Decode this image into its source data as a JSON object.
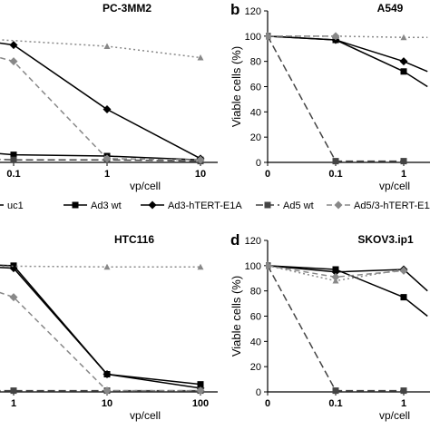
{
  "legend": [
    {
      "label": "uc1",
      "color": "#000000",
      "dash": "",
      "marker": "none"
    },
    {
      "label": "Ad3 wt",
      "color": "#000000",
      "dash": "",
      "marker": "square"
    },
    {
      "label": "Ad3-hTERT-E1A",
      "color": "#000000",
      "dash": "",
      "marker": "diamond"
    },
    {
      "label": "Ad5 wt",
      "color": "#444444",
      "dash": "8,4",
      "marker": "square"
    },
    {
      "label": "Ad5/3-hTERT-E1A",
      "color": "#888888",
      "dash": "6,4",
      "marker": "diamond"
    }
  ],
  "chart_data": [
    {
      "type": "line",
      "title": "PC-3MM2",
      "panel_letter": "",
      "xlabel": "vp/cell",
      "ylabel": "",
      "x_ticks": [
        "0.1",
        "1",
        "10"
      ],
      "ylim": [
        0,
        120
      ],
      "series": [
        {
          "name": "Ad3 wt",
          "color": "#000000",
          "dash": "",
          "marker": "square",
          "points": [
            [
              -0.8,
              11
            ],
            [
              0,
              6
            ],
            [
              1,
              5
            ],
            [
              2,
              2
            ]
          ]
        },
        {
          "name": "Ad3-hTERT-E1A",
          "color": "#000000",
          "dash": "",
          "marker": "diamond",
          "points": [
            [
              -0.8,
              101
            ],
            [
              0,
              93
            ],
            [
              1,
              42
            ],
            [
              2,
              3
            ]
          ]
        },
        {
          "name": "Ad5 wt",
          "color": "#444444",
          "dash": "8,4",
          "marker": "square",
          "points": [
            [
              -0.8,
              4
            ],
            [
              0,
              2
            ],
            [
              1,
              2
            ],
            [
              2,
              1
            ]
          ]
        },
        {
          "name": "Ad5/3-hTERT-E1A",
          "color": "#888888",
          "dash": "6,4",
          "marker": "diamond",
          "points": [
            [
              -0.8,
              96
            ],
            [
              0,
              80
            ],
            [
              1,
              3
            ],
            [
              2,
              2
            ]
          ]
        },
        {
          "name": "uc1",
          "color": "#888888",
          "dash": "2,3",
          "marker": "triangle",
          "points": [
            [
              -0.8,
              100
            ],
            [
              1,
              92
            ],
            [
              2,
              83
            ]
          ]
        }
      ]
    },
    {
      "type": "line",
      "title": "A549",
      "panel_letter": "b",
      "xlabel": "vp/cell",
      "ylabel": "Viable cells (%)",
      "x_ticks": [
        "0",
        "0.1",
        "1"
      ],
      "y_ticks": [
        "0",
        "20",
        "40",
        "60",
        "80",
        "100",
        "120"
      ],
      "ylim": [
        0,
        120
      ],
      "series": [
        {
          "name": "Ad3 wt",
          "color": "#000000",
          "dash": "",
          "marker": "square",
          "points": [
            [
              0,
              100
            ],
            [
              1,
              97
            ],
            [
              2,
              72
            ],
            [
              2.35,
              60
            ]
          ]
        },
        {
          "name": "Ad3-hTERT-E1A",
          "color": "#000000",
          "dash": "",
          "marker": "diamond",
          "points": [
            [
              0,
              100
            ],
            [
              1,
              97
            ],
            [
              2,
              80
            ],
            [
              2.35,
              72
            ]
          ]
        },
        {
          "name": "Ad5 wt",
          "color": "#444444",
          "dash": "8,4",
          "marker": "square",
          "points": [
            [
              0,
              100
            ],
            [
              1,
              1
            ],
            [
              2,
              1
            ]
          ]
        },
        {
          "name": "Ad5/3-hTERT-E1A",
          "color": "#888888",
          "dash": "6,4",
          "marker": "diamond",
          "points": [
            [
              0,
              100
            ],
            [
              1,
              100
            ]
          ]
        },
        {
          "name": "uc1",
          "color": "#888888",
          "dash": "2,3",
          "marker": "triangle",
          "points": [
            [
              0,
              100
            ],
            [
              1,
              100
            ],
            [
              2,
              99
            ],
            [
              2.35,
              99
            ]
          ]
        }
      ]
    },
    {
      "type": "line",
      "title": "HTC116",
      "panel_letter": "",
      "xlabel": "vp/cell",
      "ylabel": "",
      "x_ticks": [
        "1",
        "10",
        "100"
      ],
      "ylim": [
        0,
        120
      ],
      "series": [
        {
          "name": "Ad3 wt",
          "color": "#000000",
          "dash": "",
          "marker": "square",
          "points": [
            [
              -0.8,
              102
            ],
            [
              0,
              100
            ],
            [
              1,
              14
            ],
            [
              2,
              6
            ]
          ]
        },
        {
          "name": "Ad3-hTERT-E1A",
          "color": "#000000",
          "dash": "",
          "marker": "diamond",
          "points": [
            [
              -0.8,
              101
            ],
            [
              0,
              98
            ],
            [
              1,
              14
            ],
            [
              2,
              3
            ]
          ]
        },
        {
          "name": "Ad5 wt",
          "color": "#444444",
          "dash": "8,4",
          "marker": "square",
          "points": [
            [
              -0.8,
              1
            ],
            [
              0,
              1
            ],
            [
              1,
              1
            ],
            [
              2,
              1
            ]
          ]
        },
        {
          "name": "Ad5/3-hTERT-E1A",
          "color": "#888888",
          "dash": "6,4",
          "marker": "diamond",
          "points": [
            [
              -0.8,
              95
            ],
            [
              0,
              75
            ],
            [
              1,
              1
            ],
            [
              2,
              1
            ]
          ]
        },
        {
          "name": "uc1",
          "color": "#888888",
          "dash": "2,3",
          "marker": "triangle",
          "points": [
            [
              -0.8,
              100
            ],
            [
              1,
              99
            ],
            [
              2,
              99
            ]
          ]
        }
      ]
    },
    {
      "type": "line",
      "title": "SKOV3.ip1",
      "panel_letter": "d",
      "xlabel": "vp/cell",
      "ylabel": "Viable cells (%)",
      "x_ticks": [
        "0",
        "0.1",
        "1"
      ],
      "y_ticks": [
        "0",
        "20",
        "40",
        "60",
        "80",
        "100",
        "120"
      ],
      "ylim": [
        0,
        120
      ],
      "series": [
        {
          "name": "Ad3 wt",
          "color": "#000000",
          "dash": "",
          "marker": "square",
          "points": [
            [
              0,
              100
            ],
            [
              1,
              97
            ],
            [
              2,
              75
            ],
            [
              2.35,
              60
            ]
          ]
        },
        {
          "name": "Ad3-hTERT-E1A",
          "color": "#000000",
          "dash": "",
          "marker": "diamond",
          "points": [
            [
              0,
              100
            ],
            [
              1,
              95
            ],
            [
              2,
              97
            ],
            [
              2.35,
              80
            ]
          ]
        },
        {
          "name": "Ad5 wt",
          "color": "#444444",
          "dash": "8,4",
          "marker": "square",
          "points": [
            [
              0,
              100
            ],
            [
              1,
              1
            ],
            [
              2,
              1
            ]
          ]
        },
        {
          "name": "Ad5/3-hTERT-E1A",
          "color": "#888888",
          "dash": "6,4",
          "marker": "diamond",
          "points": [
            [
              0,
              100
            ],
            [
              1,
              91
            ],
            [
              2,
              96
            ]
          ]
        },
        {
          "name": "uc1",
          "color": "#888888",
          "dash": "2,3",
          "marker": "triangle",
          "points": [
            [
              0,
              100
            ],
            [
              1,
              88
            ],
            [
              2,
              97
            ]
          ]
        }
      ]
    }
  ]
}
